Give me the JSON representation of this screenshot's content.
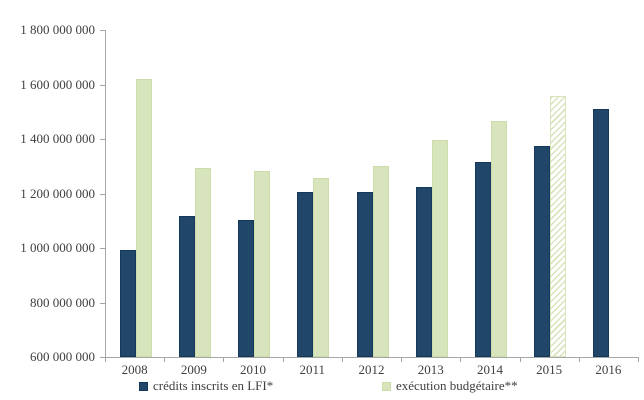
{
  "chart_data": {
    "type": "bar",
    "title": "",
    "categories": [
      "2008",
      "2009",
      "2010",
      "2011",
      "2012",
      "2013",
      "2014",
      "2015",
      "2016"
    ],
    "series": [
      {
        "name": "crédits inscrits en LFI*",
        "color": "#20476a",
        "border_color": "#16385a",
        "values": [
          992000000,
          1117000000,
          1102000000,
          1204000000,
          1206000000,
          1223000000,
          1316000000,
          1373000000,
          1511000000
        ]
      },
      {
        "name": "exécution budgétaire**",
        "color": "#d7e4bc",
        "border_color": "#ccdcab",
        "values": [
          1621000000,
          1293000000,
          1282000000,
          1258000000,
          1300000000,
          1398000000,
          1467000000,
          1556000000,
          null
        ],
        "hatched_index": 7
      }
    ],
    "ylim": [
      600000000,
      1800000000
    ],
    "ytick_step": 200000000,
    "ytick_labels": [
      "1 800 000 000",
      "1 600 000 000",
      "1 400 000 000",
      "1 200 000 000",
      "1 000 000 000",
      "800 000 000",
      "600 000 000"
    ],
    "grid": false,
    "legend_position": "bottom",
    "axis_color": "#a6a6a6",
    "text_color": "#3f3f3f"
  }
}
